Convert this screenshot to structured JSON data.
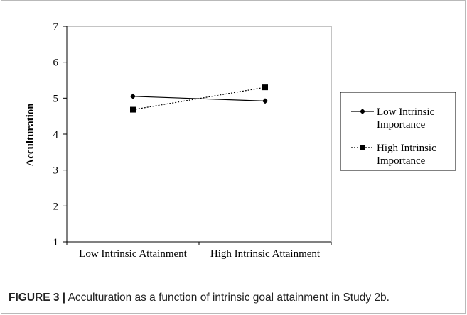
{
  "figure": {
    "label": "FIGURE 3 |",
    "caption": " Acculturation as a function of intrinsic goal attainment in Study 2b."
  },
  "chart_data": {
    "type": "line",
    "title": "",
    "xlabel": "",
    "ylabel": "Acculturation",
    "categories": [
      "Low Intrinsic Attainment",
      "High Intrinsic Attainment"
    ],
    "ylim": [
      1,
      7
    ],
    "yticks": [
      "1",
      "2",
      "3",
      "4",
      "5",
      "6",
      "7"
    ],
    "grid": false,
    "legend_position": "right",
    "series": [
      {
        "name_lines": [
          "Low Intrinsic",
          "Importance"
        ],
        "values": [
          5.05,
          4.92
        ],
        "marker": "diamond",
        "line": "solid",
        "color": "#000000"
      },
      {
        "name_lines": [
          "High Intrinsic",
          "Importance"
        ],
        "values": [
          4.68,
          5.3
        ],
        "marker": "square",
        "line": "dotted",
        "color": "#000000"
      }
    ]
  }
}
